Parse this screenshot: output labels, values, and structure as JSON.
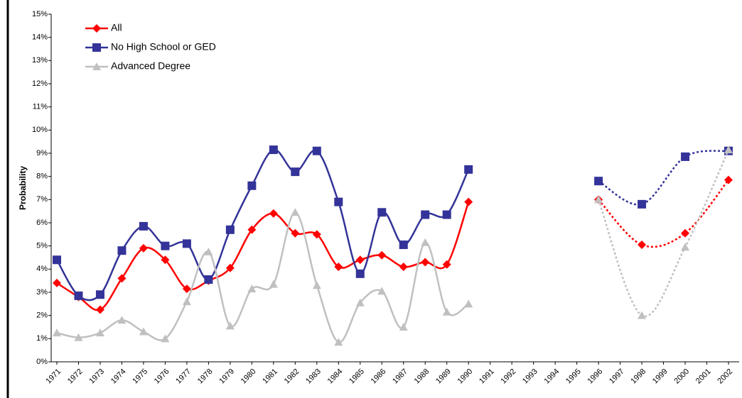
{
  "chart_data": {
    "type": "line",
    "y_label": "Probability",
    "xlim": [
      1971,
      2002
    ],
    "xticks": [
      1971,
      1972,
      1973,
      1974,
      1975,
      1976,
      1977,
      1978,
      1979,
      1980,
      1981,
      1982,
      1983,
      1984,
      1985,
      1986,
      1987,
      1988,
      1989,
      1990,
      1991,
      1992,
      1993,
      1994,
      1995,
      1996,
      1997,
      1998,
      1999,
      2000,
      2001,
      2002
    ],
    "ylim": [
      0,
      15
    ],
    "yticks": [
      {
        "value": 0,
        "label": "0%"
      },
      {
        "value": 1,
        "label": "1%"
      },
      {
        "value": 2,
        "label": "2%"
      },
      {
        "value": 3,
        "label": "3%"
      },
      {
        "value": 4,
        "label": "4%"
      },
      {
        "value": 5,
        "label": "5%"
      },
      {
        "value": 6,
        "label": "6%"
      },
      {
        "value": 7,
        "label": "7%"
      },
      {
        "value": 8,
        "label": "8%"
      },
      {
        "value": 9,
        "label": "9%"
      },
      {
        "value": 10,
        "label": "10%"
      },
      {
        "value": 11,
        "label": "11%"
      },
      {
        "value": 12,
        "label": "12%"
      },
      {
        "value": 13,
        "label": "13%"
      },
      {
        "value": 14,
        "label": "14%"
      },
      {
        "value": 15,
        "label": "15%"
      }
    ],
    "grid": false,
    "legend": "top-left",
    "series": [
      {
        "name": "All",
        "color": "#ff0000",
        "marker": "diamond",
        "segments": [
          {
            "style": "solid",
            "x": [
              1971,
              1972,
              1973,
              1974,
              1975,
              1976,
              1977,
              1978,
              1979,
              1980,
              1981,
              1982,
              1983,
              1984,
              1985,
              1986,
              1987,
              1988,
              1989,
              1990
            ],
            "values": [
              3.4,
              2.8,
              2.25,
              3.6,
              4.9,
              4.4,
              3.15,
              3.5,
              4.05,
              5.7,
              6.4,
              5.55,
              5.5,
              4.1,
              4.4,
              4.6,
              4.1,
              4.3,
              4.2,
              6.9
            ]
          },
          {
            "style": "dotted",
            "x": [
              1996,
              1998,
              2000,
              2002
            ],
            "values": [
              7.0,
              5.05,
              5.55,
              7.85
            ]
          }
        ]
      },
      {
        "name": "No High School or GED",
        "color": "#333399",
        "marker": "square",
        "segments": [
          {
            "style": "solid",
            "x": [
              1971,
              1972,
              1973,
              1974,
              1975,
              1976,
              1977,
              1978,
              1979,
              1980,
              1981,
              1982,
              1983,
              1984,
              1985,
              1986,
              1987,
              1988,
              1989,
              1990
            ],
            "values": [
              4.4,
              2.85,
              2.9,
              4.8,
              5.85,
              5.0,
              5.1,
              3.55,
              5.7,
              7.6,
              9.15,
              8.2,
              9.1,
              6.9,
              3.8,
              6.45,
              5.05,
              6.35,
              6.35,
              8.3
            ]
          },
          {
            "style": "dotted",
            "x": [
              1996,
              1998,
              2000,
              2002
            ],
            "values": [
              7.8,
              6.8,
              8.85,
              9.1
            ]
          }
        ]
      },
      {
        "name": "Advanced Degree",
        "color": "#c0c0c0",
        "marker": "triangle",
        "segments": [
          {
            "style": "solid",
            "x": [
              1971,
              1972,
              1973,
              1974,
              1975,
              1976,
              1977,
              1978,
              1979,
              1980,
              1981,
              1982,
              1983,
              1984,
              1985,
              1986,
              1987,
              1988,
              1989,
              1990
            ],
            "values": [
              1.25,
              1.05,
              1.25,
              1.8,
              1.3,
              1.0,
              2.6,
              4.75,
              1.55,
              3.15,
              3.35,
              6.45,
              3.3,
              0.85,
              2.55,
              3.05,
              1.5,
              5.15,
              2.15,
              2.5
            ]
          },
          {
            "style": "dotted",
            "x": [
              1996,
              1998,
              2000,
              2002
            ],
            "values": [
              7.0,
              2.0,
              4.95,
              9.15
            ]
          }
        ]
      }
    ]
  }
}
